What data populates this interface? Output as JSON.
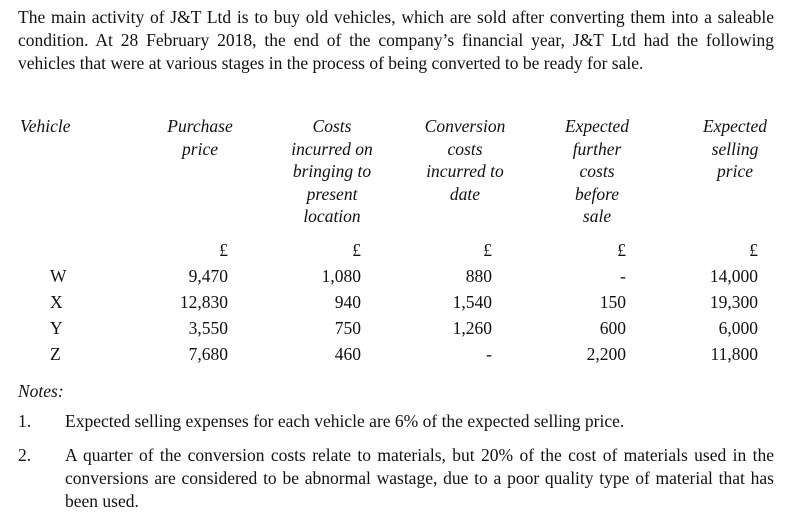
{
  "intro": "The main activity of J&T Ltd is to buy old vehicles, which are sold after converting them into a saleable condition. At 28 February 2018, the end of the company’s financial year, J&T Ltd had the following vehicles that were at various stages in the process of being converted to be ready for sale.",
  "table": {
    "headers": [
      [
        "Vehicle"
      ],
      [
        "Purchase",
        "price"
      ],
      [
        "Costs",
        "incurred on",
        "bringing to",
        "present",
        "location"
      ],
      [
        "Conversion",
        "costs",
        "incurred to",
        "date"
      ],
      [
        "Expected",
        "further",
        "costs",
        "before",
        "sale"
      ],
      [
        "Expected",
        "selling",
        "price"
      ]
    ],
    "units": [
      "£",
      "£",
      "£",
      "£",
      "£"
    ],
    "rows": [
      {
        "vehicle": "W",
        "values": [
          "9,470",
          "1,080",
          "880",
          "-",
          "14,000"
        ]
      },
      {
        "vehicle": "X",
        "values": [
          "12,830",
          "940",
          "1,540",
          "150",
          "19,300"
        ]
      },
      {
        "vehicle": "Y",
        "values": [
          "3,550",
          "750",
          "1,260",
          "600",
          "6,000"
        ]
      },
      {
        "vehicle": "Z",
        "values": [
          "7,680",
          "460",
          "-",
          "2,200",
          "11,800"
        ]
      }
    ]
  },
  "notes": {
    "title": "Notes:",
    "items": [
      {
        "num": "1.",
        "text": "Expected selling expenses for each vehicle are 6% of the expected selling price."
      },
      {
        "num": "2.",
        "text": "A quarter of the conversion costs relate to materials, but 20% of the cost of materials used in the conversions are considered to be abnormal wastage, due to a poor quality type of material that has been used."
      }
    ]
  }
}
